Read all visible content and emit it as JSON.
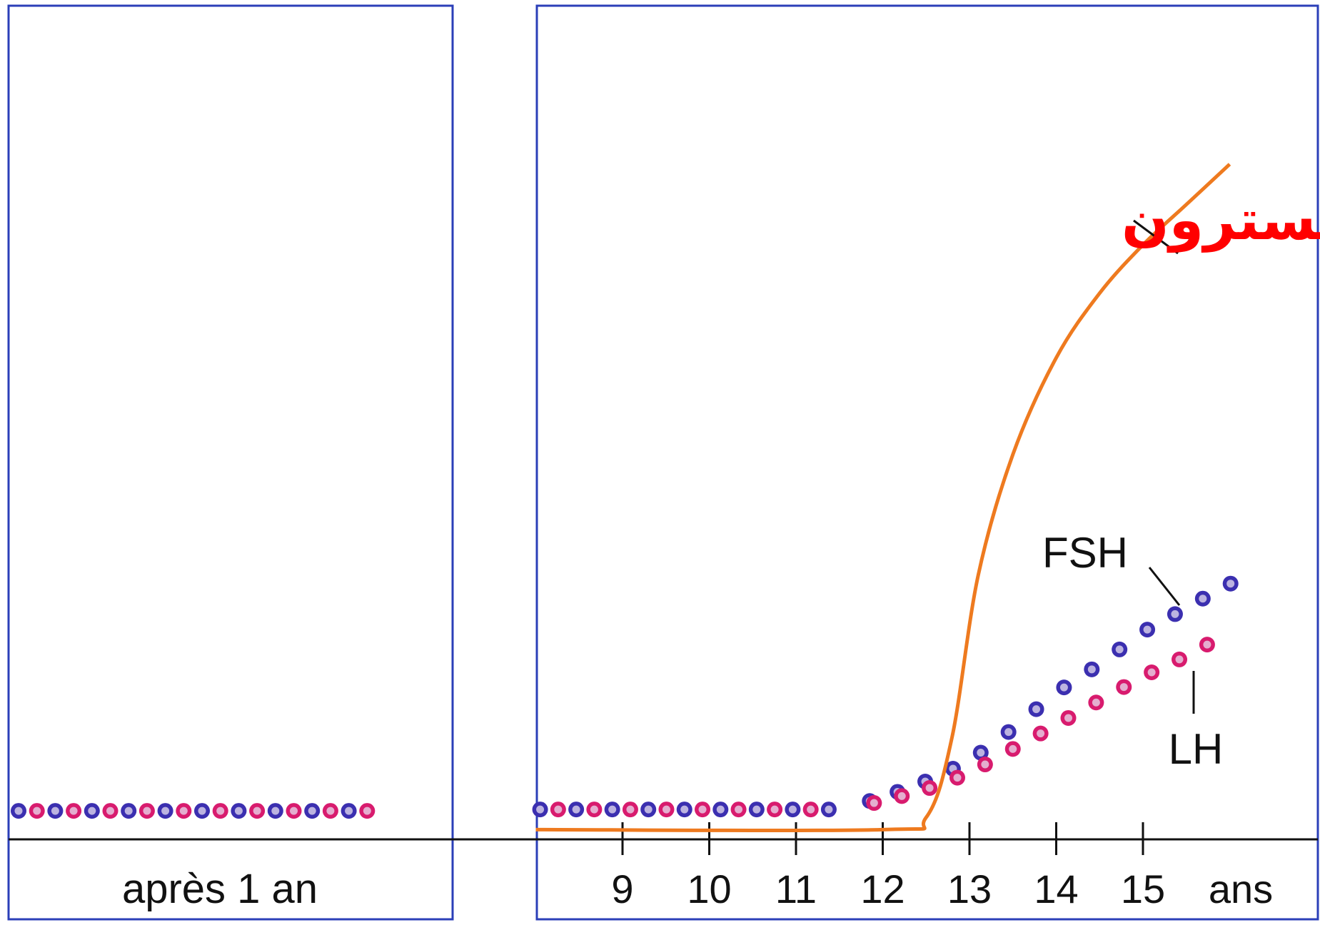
{
  "chart_data": {
    "type": "line",
    "panels": [
      {
        "caption": "après 1 an"
      },
      {
        "x_tick_labels": [
          "9",
          "10",
          "11",
          "12",
          "13",
          "14",
          "15"
        ],
        "x_unit": "ans",
        "x_range": [
          8,
          16
        ],
        "series": [
          {
            "name": "تستسترون",
            "style": "solid-line",
            "points": [
              [
                8,
                0.5
              ],
              [
                12,
                0.5
              ],
              [
                12.5,
                2
              ],
              [
                12.8,
                12
              ],
              [
                13.1,
                32
              ],
              [
                13.5,
                47
              ],
              [
                14,
                59
              ],
              [
                14.5,
                67
              ],
              [
                15,
                73
              ],
              [
                15.5,
                78
              ],
              [
                16,
                83
              ]
            ]
          },
          {
            "name": "FSH",
            "style": "dots",
            "points": [
              [
                8,
                3
              ],
              [
                11.5,
                3
              ],
              [
                12,
                4.5
              ],
              [
                12.5,
                6.5
              ],
              [
                13,
                9
              ],
              [
                13.5,
                13
              ],
              [
                14,
                17.5
              ],
              [
                14.5,
                21
              ],
              [
                15,
                25
              ],
              [
                15.5,
                28
              ],
              [
                16,
                31
              ]
            ]
          },
          {
            "name": "LH",
            "style": "dots",
            "points": [
              [
                8,
                3
              ],
              [
                11.5,
                3
              ],
              [
                12,
                4
              ],
              [
                12.5,
                5.5
              ],
              [
                13,
                7.5
              ],
              [
                13.5,
                10.5
              ],
              [
                14,
                13.5
              ],
              [
                14.5,
                16.5
              ],
              [
                15,
                19.5
              ],
              [
                15.5,
                22
              ],
              [
                16,
                25
              ]
            ]
          }
        ]
      }
    ],
    "baseline": {
      "left_panel_level": 3
    }
  },
  "colors": {
    "frame": "#2b3fb8",
    "axis": "#111111",
    "testosterone": "#ee7a1f",
    "testosterone_label": "#ff0000",
    "fsh_dot": "#3b2fb0",
    "lh_dot": "#d81b6e"
  }
}
